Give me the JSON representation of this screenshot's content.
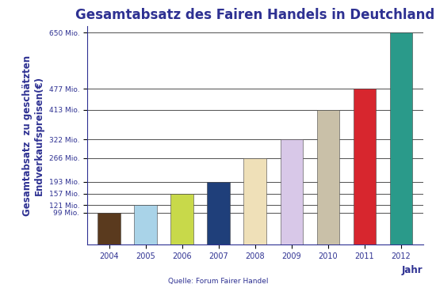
{
  "chart_data": {
    "type": "bar",
    "title": "Gesamtabsatz des Fairen Handels in Deutchland",
    "y_label": "Gesamtabsatz  zu geschätzten Endverkaufspreisen(€)",
    "x_label": "Jahr",
    "source": "Quelle: Forum Fairer Handel",
    "categories": [
      "2004",
      "2005",
      "2006",
      "2007",
      "2008",
      "2009",
      "2010",
      "2011",
      "2012"
    ],
    "values": [
      99,
      121,
      157,
      193,
      266,
      322,
      413,
      477,
      650
    ],
    "colors": [
      "#5a3a1e",
      "#a9d3e8",
      "#c8d94a",
      "#1f3f7a",
      "#efe0b8",
      "#d8c8e8",
      "#c9c0a8",
      "#d7262e",
      "#2a9a8a"
    ],
    "ylim": [
      0,
      670
    ],
    "yticks": [
      {
        "value": 99,
        "label": "99 Mio."
      },
      {
        "value": 121,
        "label": "121 Mio."
      },
      {
        "value": 157,
        "label": "157 Mio."
      },
      {
        "value": 193,
        "label": "193 Mio."
      },
      {
        "value": 266,
        "label": "266 Mio."
      },
      {
        "value": 322,
        "label": "322 Mio."
      },
      {
        "value": 413,
        "label": "413 Mio."
      },
      {
        "value": 477,
        "label": "477 Mio."
      },
      {
        "value": 650,
        "label": "650 Mio."
      }
    ],
    "grid": true
  }
}
